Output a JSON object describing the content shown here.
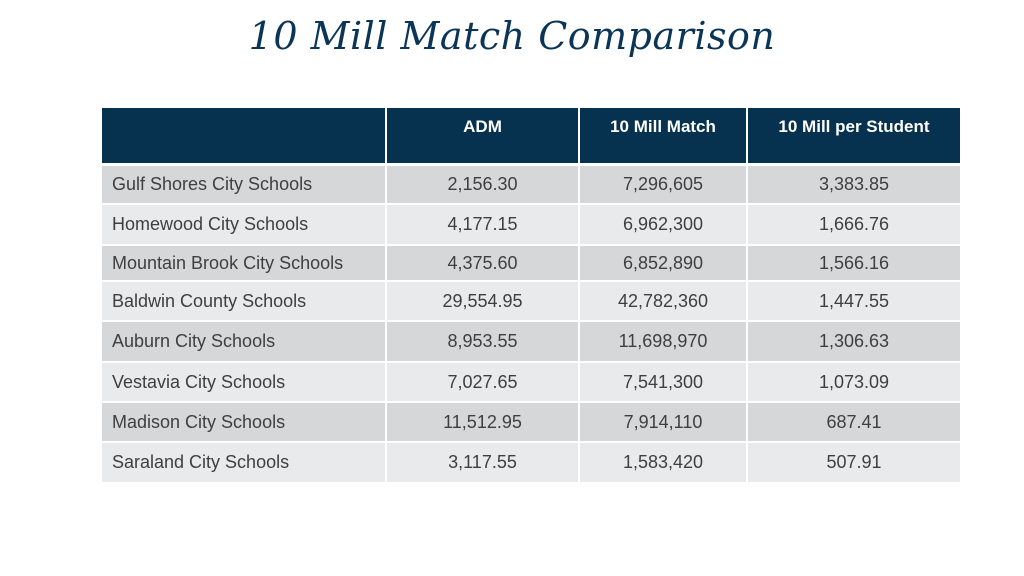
{
  "title": "10 Mill Match Comparison",
  "table": {
    "headers": [
      "",
      "ADM",
      "10 Mill Match",
      "10 Mill per Student"
    ],
    "rows": [
      [
        "Gulf Shores City Schools",
        "2,156.30",
        "7,296,605",
        "3,383.85"
      ],
      [
        "Homewood City Schools",
        "4,177.15",
        "6,962,300",
        "1,666.76"
      ],
      [
        "Mountain Brook City Schools",
        "4,375.60",
        "6,852,890",
        "1,566.16"
      ],
      [
        "Baldwin County Schools",
        "29,554.95",
        "42,782,360",
        "1,447.55"
      ],
      [
        "Auburn City Schools",
        "8,953.55",
        "11,698,970",
        "1,306.63"
      ],
      [
        "Vestavia City Schools",
        "7,027.65",
        "7,541,300",
        "1,073.09"
      ],
      [
        "Madison City Schools",
        "11,512.95",
        "7,914,110",
        "687.41"
      ],
      [
        "Saraland City Schools",
        "3,117.55",
        "1,583,420",
        "507.91"
      ]
    ]
  },
  "colors": {
    "title": "#0b3556",
    "header_bg": "#06324f",
    "row_dark": "#d6d7d9",
    "row_light": "#e9eaeb"
  }
}
